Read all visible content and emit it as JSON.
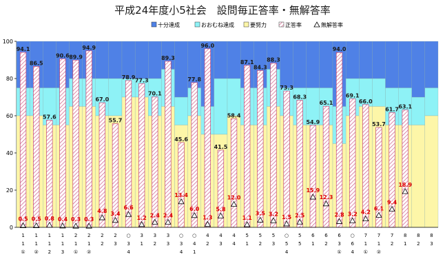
{
  "chart_data": {
    "type": "bar",
    "title": "平成24年度小5社会　設問毎正答率・無解答率",
    "xlabel": "",
    "ylabel": "",
    "ylim": [
      0,
      100
    ],
    "yticks": [
      0,
      20,
      40,
      60,
      80,
      100
    ],
    "grid": false,
    "legend_position": "top-right",
    "legend": [
      {
        "name": "十分達成",
        "color": "#4f81e6",
        "kind": "box"
      },
      {
        "name": "おおむね達成",
        "color": "#8ef2f6",
        "kind": "box"
      },
      {
        "name": "要努力",
        "color": "#fdf6a8",
        "kind": "box"
      },
      {
        "name": "正答率",
        "color": "#e89ac0",
        "kind": "hatch"
      },
      {
        "name": "無解答率",
        "color": "#ffffff",
        "kind": "triangle"
      }
    ],
    "colors": {
      "excellent": "#4f81e6",
      "good": "#8ef2f6",
      "effort": "#fdf6a8",
      "correct_hatch": "#d05a86",
      "missing_label": "#e00000"
    },
    "categories": [
      "1-1-①",
      "1-1-②",
      "1-1-2",
      "1-1-3",
      "2-1-①",
      "2-1-②",
      "2-2",
      "2-3",
      "3-4",
      "3-1",
      "3-2",
      "3-3",
      "3-4",
      "4-1",
      "4-2",
      "4-3",
      "4-4",
      "5-1",
      "5-2",
      "5-3",
      "5-4",
      "5-5",
      "6-1",
      "6-2",
      "6-3",
      "6-4",
      "7-1-①",
      "7-1-②",
      "7-2",
      "8-1",
      "8-2",
      "8-3"
    ],
    "x_label_lines": [
      [
        "1",
        "1",
        "①"
      ],
      [
        "1",
        "1",
        "②"
      ],
      [
        "1",
        "1",
        "2"
      ],
      [
        "1",
        "1",
        "3"
      ],
      [
        "2",
        "1",
        "①"
      ],
      [
        "2",
        "1",
        "②"
      ],
      [
        "2",
        "2",
        ""
      ],
      [
        "2",
        "3",
        ""
      ],
      [
        "○",
        "3",
        "4"
      ],
      [
        "3",
        "1",
        ""
      ],
      [
        "3",
        "2",
        ""
      ],
      [
        "3",
        "3",
        ""
      ],
      [
        "○",
        "3",
        "4"
      ],
      [
        "○",
        "4",
        "1"
      ],
      [
        "4",
        "2",
        ""
      ],
      [
        "4",
        "3",
        ""
      ],
      [
        "4",
        "4",
        ""
      ],
      [
        "5",
        "1",
        ""
      ],
      [
        "5",
        "2",
        ""
      ],
      [
        "5",
        "3",
        ""
      ],
      [
        "○",
        "5",
        "4"
      ],
      [
        "5",
        "5",
        ""
      ],
      [
        "6",
        "1",
        ""
      ],
      [
        "6",
        "2",
        ""
      ],
      [
        "6",
        "3",
        "①"
      ],
      [
        "○",
        "6",
        "4"
      ],
      [
        "7",
        "1",
        "①"
      ],
      [
        "7",
        "1",
        "②"
      ],
      [
        "7",
        "2",
        ""
      ],
      [
        "8",
        "1",
        ""
      ],
      [
        "8",
        "2",
        ""
      ],
      [
        "8",
        "3",
        ""
      ]
    ],
    "band_boundaries": [
      [
        60,
        75
      ],
      [
        60,
        75
      ],
      [
        55,
        75
      ],
      [
        55,
        75
      ],
      [
        65,
        80
      ],
      [
        65,
        80
      ],
      [
        60,
        80
      ],
      [
        60,
        80
      ],
      [
        70,
        80
      ],
      [
        70,
        80
      ],
      [
        60,
        80
      ],
      [
        65,
        85
      ],
      [
        55,
        70
      ],
      [
        60,
        75
      ],
      [
        50,
        65
      ],
      [
        50,
        80
      ],
      [
        60,
        80
      ],
      [
        55,
        75
      ],
      [
        55,
        75
      ],
      [
        65,
        85
      ],
      [
        60,
        75
      ],
      [
        55,
        75
      ],
      [
        55,
        75
      ],
      [
        55,
        75
      ],
      [
        45,
        65
      ],
      [
        60,
        80
      ],
      [
        65,
        80
      ],
      [
        65,
        80
      ],
      [
        55,
        75
      ],
      [
        55,
        75
      ],
      [
        55,
        70
      ],
      [
        60,
        75
      ]
    ],
    "series": [
      {
        "name": "正答率",
        "values": [
          94.1,
          86.5,
          57.6,
          90.6,
          89.9,
          94.9,
          67.0,
          55.7,
          78.9,
          77.3,
          70.1,
          89.3,
          45.6,
          77.8,
          96.0,
          41.5,
          58.4,
          87.1,
          84.3,
          88.3,
          73.3,
          68.3,
          54.9,
          65.1,
          94.0,
          69.1,
          66.0,
          53.7,
          61.7,
          63.1,
          null,
          null
        ]
      },
      {
        "name": "無解答率",
        "values": [
          0.5,
          0.5,
          0.8,
          0.4,
          0.3,
          0.3,
          4.8,
          3.4,
          6.6,
          1.2,
          2.4,
          2.4,
          13.4,
          6.0,
          1.3,
          5.8,
          12.0,
          1.1,
          3.5,
          3.2,
          1.5,
          2.5,
          15.9,
          12.3,
          2.8,
          3.2,
          4.2,
          6.1,
          9.4,
          18.9,
          null,
          null
        ]
      }
    ],
    "correct_labels": [
      "94.1",
      "86.5",
      "57.6",
      "90.6",
      "89.9",
      "94.9",
      "67.0",
      "55.7",
      "78.9",
      "77.3",
      "70.1",
      "89.3",
      "45.6",
      "77.8",
      "96.0",
      "41.5",
      "58.4",
      "87.1",
      "84.3",
      "88.3",
      "73.3",
      "68.3",
      "54.9",
      "65.1",
      "94.0",
      "69.1",
      "66.0",
      "53.7",
      "61.7",
      "63.1"
    ],
    "missing_labels": [
      "0.5",
      "0.5",
      "0.8",
      "0.4",
      "0.3",
      "0.3",
      "4.8",
      "3.4",
      "6.6",
      "1.2",
      "2.4",
      "2.4",
      "13.4",
      "6.0",
      "1.3",
      "5.8",
      "12.0",
      "1.1",
      "3.5",
      "3.2",
      "1.5",
      "2.5",
      "15.9",
      "12.3",
      "2.8",
      "3.2",
      "4.2",
      "6.1",
      "9.4",
      "18.9"
    ]
  }
}
